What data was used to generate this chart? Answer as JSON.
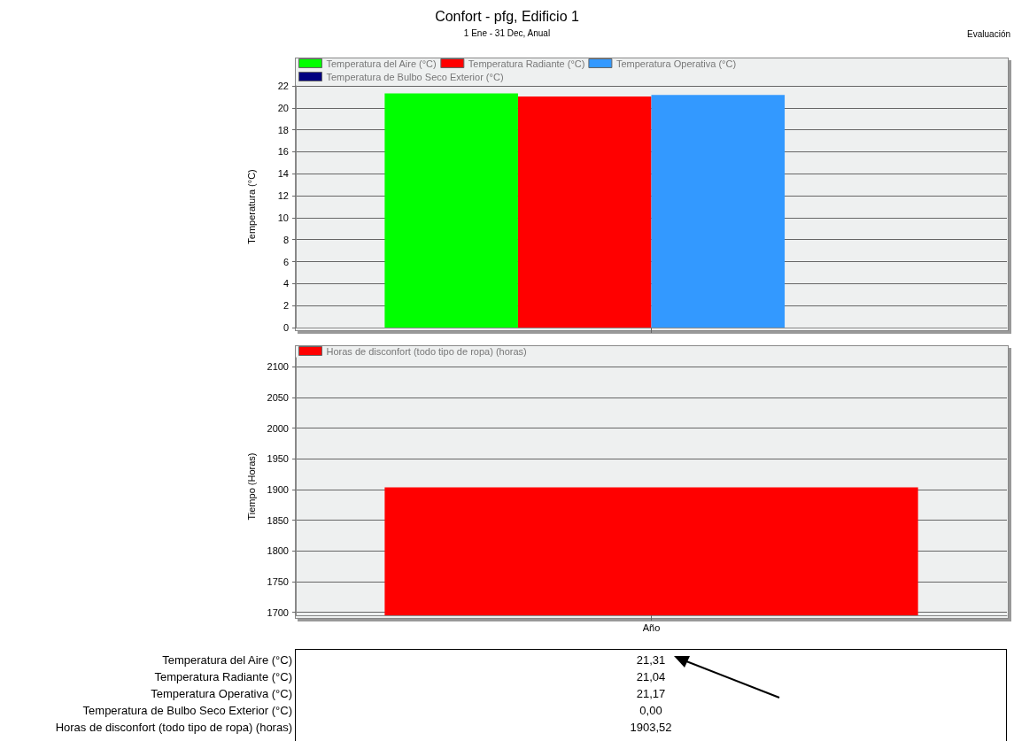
{
  "chart_data": [
    {
      "type": "bar",
      "title": "Confort - pfg, Edificio 1",
      "subtitle": "1 Ene - 31 Dec, Anual",
      "annotations": [
        "Evaluación"
      ],
      "ylabel": "Temperatura (°C)",
      "categories": [
        null
      ],
      "ylim": [
        0,
        22
      ],
      "yticks": [
        0,
        2,
        4,
        6,
        8,
        10,
        12,
        14,
        16,
        18,
        20,
        22
      ],
      "grid": "y",
      "legend": "top left",
      "series": [
        {
          "name": "Temperatura del Aire (°C)",
          "color": "#00ff00",
          "values": [
            21.31
          ]
        },
        {
          "name": "Temperatura Radiante (°C)",
          "color": "#ff0000",
          "values": [
            21.04
          ]
        },
        {
          "name": "Temperatura Operativa (°C)",
          "color": "#3399ff",
          "values": [
            21.17
          ]
        },
        {
          "name": "Temperatura de Bulbo Seco Exterior (°C)",
          "color": "#000080",
          "values": [
            0.0
          ]
        }
      ]
    },
    {
      "type": "bar",
      "ylabel": "Tiempo (Horas)",
      "categories": [
        "Año"
      ],
      "ylim": [
        1695,
        2115
      ],
      "yticks": [
        1700,
        1750,
        1800,
        1850,
        1900,
        1950,
        2000,
        2050,
        2100
      ],
      "grid": "y",
      "legend": "top left",
      "series": [
        {
          "name": "Horas de disconfort (todo tipo de ropa) (horas)",
          "color": "#ff0000",
          "values": [
            1903.52
          ]
        }
      ]
    },
    {
      "type": "other",
      "categories": [
        "Temperatura del Aire (°C)",
        "Temperatura Radiante (°C)",
        "Temperatura Operativa (°C)",
        "Temperatura de Bulbo Seco Exterior (°C)",
        "Horas de disconfort (todo tipo de ropa) (horas)"
      ],
      "values": [
        21.31,
        21.04,
        21.17,
        0.0,
        1903.52
      ],
      "value_labels": [
        "21,31",
        "21,04",
        "21,17",
        "0,00",
        "1903,52"
      ]
    }
  ]
}
